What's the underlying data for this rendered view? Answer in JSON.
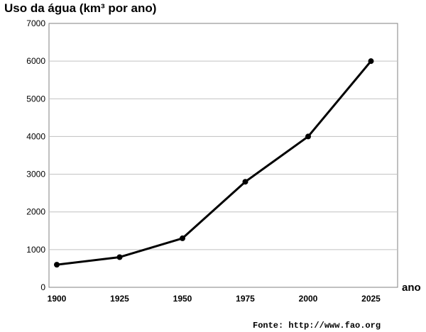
{
  "chart_data": {
    "type": "line",
    "ylabel": "Uso da água (km³ por ano)",
    "xlabel": "ano",
    "x": [
      1900,
      1925,
      1950,
      1975,
      2000,
      2025
    ],
    "series": [
      {
        "values": [
          600,
          800,
          1300,
          2800,
          4000,
          6000
        ]
      }
    ],
    "yticks": [
      0,
      1000,
      2000,
      3000,
      4000,
      5000,
      6000,
      7000
    ],
    "ylim": [
      0,
      7000
    ],
    "xticks": [
      "1900",
      "1925",
      "1950",
      "1975",
      "2000",
      "2025"
    ],
    "grid": "horizontal",
    "legend": "none",
    "source": "Fonte: http://www.fao.org",
    "line_color": "#000000",
    "grid_color": "#c0c0c0"
  }
}
